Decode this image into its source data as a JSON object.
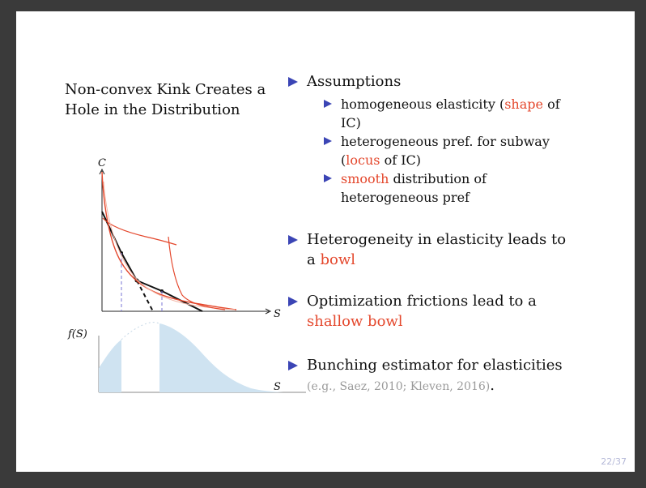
{
  "slide": {
    "title": "Non-convex Kink Creates a Hole in the Distribution",
    "figure": {
      "top_y_label": "C",
      "top_x_label": "S",
      "bottom_y_label": "f(S)",
      "bottom_x_label": "S"
    },
    "bullets": [
      {
        "text": "Assumptions",
        "sub": [
          {
            "parts": [
              "homogeneous elasticity (",
              "shape",
              " of IC)"
            ]
          },
          {
            "parts": [
              "heterogeneous pref. for subway (",
              "locus",
              " of IC)"
            ]
          },
          {
            "parts": [
              "",
              "smooth",
              " distribution of heterogeneous pref"
            ]
          }
        ]
      },
      {
        "parts": [
          "Heterogeneity in elasticity leads to a ",
          "bowl",
          ""
        ]
      },
      {
        "parts": [
          "Optimization frictions lead to a ",
          "shallow bowl",
          ""
        ]
      },
      {
        "text": "Bunching estimator for elasticities",
        "citation": "(e.g., Saez, 2010; Kleven, 2016)",
        "end": "."
      }
    ],
    "page_number": "22/37"
  },
  "colors": {
    "accent_red": "#e4472c",
    "bullet_blue": "#3b45b5",
    "density_fill": "#cfe3f1"
  }
}
